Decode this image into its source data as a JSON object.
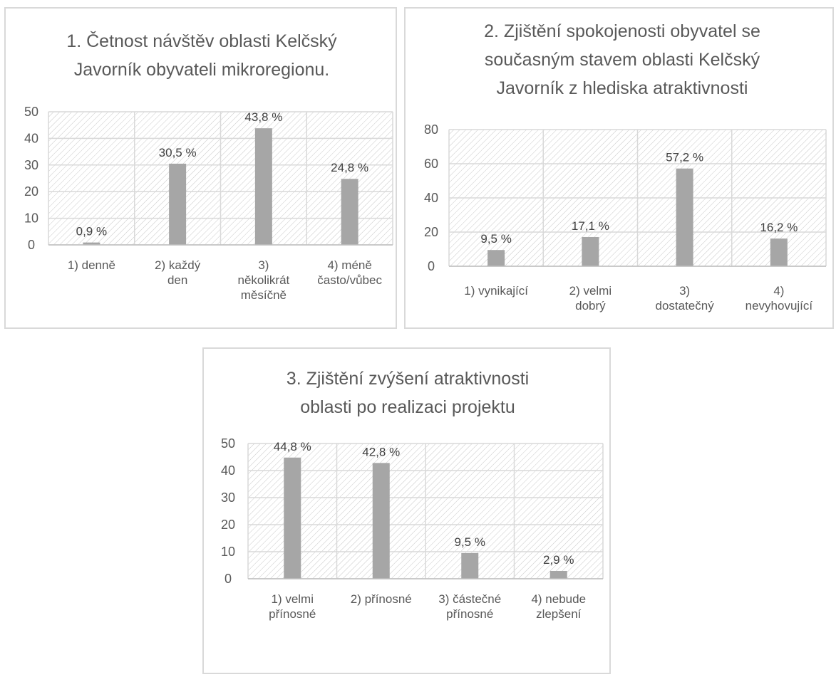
{
  "chart_data": [
    {
      "type": "bar",
      "title_lines": [
        "1. Četnost návštěv oblasti Kelčský",
        "Javorník obyvateli mikroregionu."
      ],
      "title": "1. Četnost návštěv oblasti Kelčský Javorník obyvateli mikroregionu.",
      "categories": [
        [
          "1) denně"
        ],
        [
          "2) každý",
          "den"
        ],
        [
          "3)",
          "několikrát",
          "měsíčně"
        ],
        [
          "4) méně",
          "často/vůbec"
        ]
      ],
      "values": [
        0.9,
        30.5,
        43.8,
        24.8
      ],
      "data_labels": [
        "0,9 %",
        "30,5 %",
        "43,8 %",
        "24,8 %"
      ],
      "ylim": [
        0,
        50
      ],
      "yticks": [
        "0",
        "10",
        "20",
        "30",
        "40",
        "50"
      ],
      "grid": true,
      "bar_color": "#a6a6a6"
    },
    {
      "type": "bar",
      "title_lines": [
        "2. Zjištění spokojenosti obyvatel se",
        "současným stavem oblasti Kelčský",
        "Javorník z hlediska atraktivnosti"
      ],
      "title": "2. Zjištění spokojenosti obyvatel se současným stavem oblasti Kelčský Javorník z hlediska atraktivnosti",
      "categories": [
        [
          "1) vynikající"
        ],
        [
          "2) velmi",
          "dobrý"
        ],
        [
          "3)",
          "dostatečný"
        ],
        [
          "4)",
          "nevyhovující"
        ]
      ],
      "values": [
        9.5,
        17.1,
        57.2,
        16.2
      ],
      "data_labels": [
        "9,5 %",
        "17,1 %",
        "57,2 %",
        "16,2 %"
      ],
      "ylim": [
        0,
        80
      ],
      "yticks": [
        "0",
        "20",
        "40",
        "60",
        "80"
      ],
      "grid": true,
      "bar_color": "#a6a6a6"
    },
    {
      "type": "bar",
      "title_lines": [
        "3. Zjištění zvýšení atraktivnosti",
        "oblasti po realizaci projektu"
      ],
      "title": "3. Zjištění zvýšení atraktivnosti oblasti po realizaci projektu",
      "categories": [
        [
          "1) velmi",
          "přínosné"
        ],
        [
          "2) přínosné"
        ],
        [
          "3) částečné",
          "přínosné"
        ],
        [
          "4) nebude",
          "zlepšení"
        ]
      ],
      "values": [
        44.8,
        42.8,
        9.5,
        2.9
      ],
      "data_labels": [
        "44,8 %",
        "42,8 %",
        "9,5 %",
        "2,9 %"
      ],
      "ylim": [
        0,
        50
      ],
      "yticks": [
        "0",
        "10",
        "20",
        "30",
        "40",
        "50"
      ],
      "grid": true,
      "bar_color": "#a6a6a6"
    }
  ]
}
